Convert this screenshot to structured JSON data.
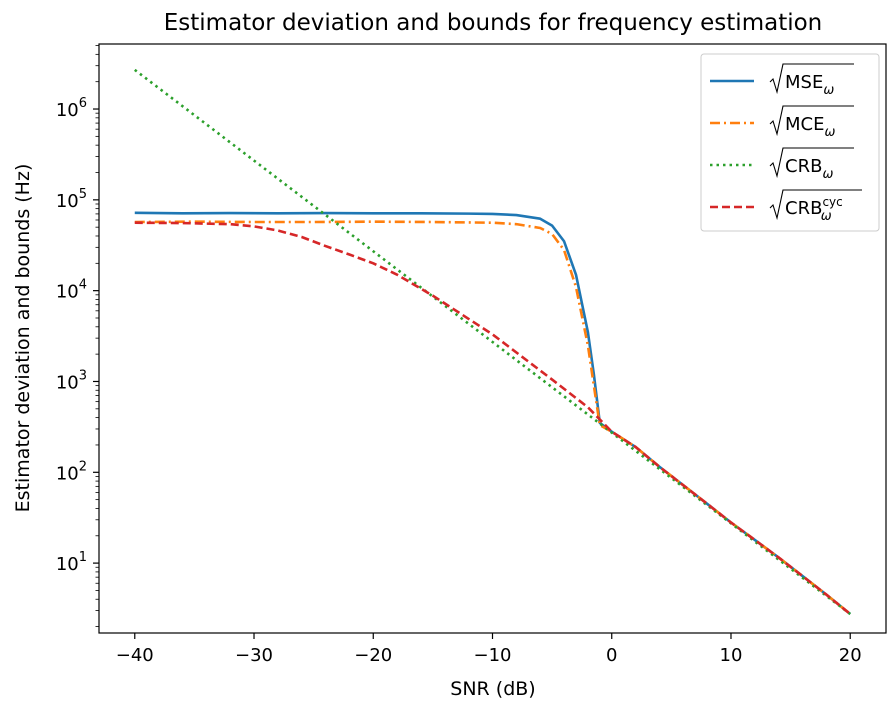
{
  "chart_data": {
    "type": "line",
    "title": "Estimator deviation and bounds for frequency estimation",
    "xlabel": "SNR (dB)",
    "ylabel": "Estimator deviation and bounds (Hz)",
    "xlim": [
      -43,
      23
    ],
    "ylim": [
      1.7,
      5200000
    ],
    "yscale": "log",
    "grid": false,
    "legend_position": "top-right",
    "x_ticks": [
      -40,
      -30,
      -20,
      -10,
      0,
      10,
      20
    ],
    "x_tick_labels": [
      "−40",
      "−30",
      "−20",
      "−10",
      "0",
      "10",
      "20"
    ],
    "y_ticks": [
      10,
      100,
      1000,
      10000,
      100000,
      1000000
    ],
    "y_tick_labels": [
      {
        "base": "10",
        "exp": "1"
      },
      {
        "base": "10",
        "exp": "2"
      },
      {
        "base": "10",
        "exp": "3"
      },
      {
        "base": "10",
        "exp": "4"
      },
      {
        "base": "10",
        "exp": "5"
      },
      {
        "base": "10",
        "exp": "6"
      }
    ],
    "series": [
      {
        "name": "√MSE_ω",
        "legend_main": "MSE",
        "legend_sub": "ω",
        "legend_sup": "",
        "color": "#1f77b4",
        "style": "solid",
        "points": [
          [
            -40,
            72000
          ],
          [
            -36,
            71000
          ],
          [
            -32,
            71500
          ],
          [
            -28,
            71000
          ],
          [
            -24,
            71500
          ],
          [
            -20,
            71000
          ],
          [
            -16,
            71000
          ],
          [
            -12,
            70500
          ],
          [
            -10,
            70000
          ],
          [
            -8,
            68000
          ],
          [
            -6,
            62000
          ],
          [
            -5,
            52000
          ],
          [
            -4,
            35000
          ],
          [
            -3,
            15000
          ],
          [
            -2,
            3500
          ],
          [
            -1.5,
            1200
          ],
          [
            -1,
            350
          ],
          [
            0,
            280
          ],
          [
            2,
            190
          ],
          [
            4,
            115
          ],
          [
            6,
            72
          ],
          [
            8,
            45
          ],
          [
            10,
            28
          ],
          [
            12,
            18
          ],
          [
            14,
            11.5
          ],
          [
            16,
            7.2
          ],
          [
            18,
            4.5
          ],
          [
            20,
            2.75
          ]
        ]
      },
      {
        "name": "√MCE_ω",
        "legend_main": "MCE",
        "legend_sub": "ω",
        "legend_sup": "",
        "color": "#ff7f0e",
        "style": "dashdot",
        "points": [
          [
            -40,
            57000
          ],
          [
            -35,
            57500
          ],
          [
            -30,
            57000
          ],
          [
            -25,
            57000
          ],
          [
            -20,
            57500
          ],
          [
            -15,
            57000
          ],
          [
            -10,
            56000
          ],
          [
            -8,
            54000
          ],
          [
            -6,
            49000
          ],
          [
            -5,
            42000
          ],
          [
            -4,
            28000
          ],
          [
            -3,
            11000
          ],
          [
            -2,
            2500
          ],
          [
            -1.5,
            900
          ],
          [
            -1,
            330
          ],
          [
            0,
            280
          ],
          [
            2,
            190
          ],
          [
            4,
            115
          ],
          [
            6,
            72
          ],
          [
            8,
            45
          ],
          [
            10,
            28
          ],
          [
            12,
            18
          ],
          [
            14,
            11.5
          ],
          [
            16,
            7.2
          ],
          [
            18,
            4.5
          ],
          [
            20,
            2.75
          ]
        ]
      },
      {
        "name": "√CRB_ω",
        "legend_main": "CRB",
        "legend_sub": "ω",
        "legend_sup": "",
        "color": "#2ca02c",
        "style": "dotted",
        "points": [
          [
            -40,
            2700000
          ],
          [
            20,
            2.75
          ]
        ]
      },
      {
        "name": "√CRB_ω^cyc",
        "legend_main": "CRB",
        "legend_sub": "ω",
        "legend_sup": "cyc",
        "color": "#d62728",
        "style": "dashed",
        "points": [
          [
            -40,
            56000
          ],
          [
            -36,
            55500
          ],
          [
            -32,
            54000
          ],
          [
            -30,
            51000
          ],
          [
            -28,
            46000
          ],
          [
            -26,
            39000
          ],
          [
            -24,
            31000
          ],
          [
            -22,
            25000
          ],
          [
            -20,
            20000
          ],
          [
            -18,
            15000
          ],
          [
            -15,
            8800
          ],
          [
            -10,
            3300
          ],
          [
            -5,
            1050
          ],
          [
            -2,
            520
          ],
          [
            0,
            280
          ],
          [
            2,
            190
          ],
          [
            4,
            115
          ],
          [
            6,
            72
          ],
          [
            8,
            45
          ],
          [
            10,
            28
          ],
          [
            12,
            18
          ],
          [
            14,
            11.5
          ],
          [
            16,
            7.2
          ],
          [
            18,
            4.5
          ],
          [
            20,
            2.75
          ]
        ]
      }
    ]
  }
}
